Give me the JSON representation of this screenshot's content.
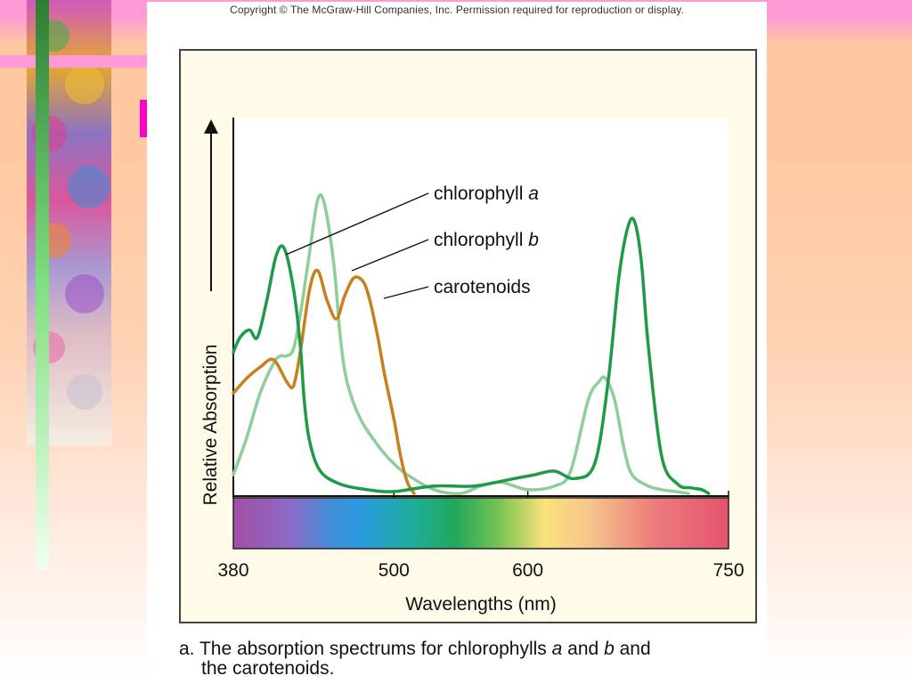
{
  "copyright": "Copyright © The McGraw-Hill Companies, Inc. Permission required for reproduction or display.",
  "caption": {
    "prefix": "a. The absorption spectrums for chlorophylls ",
    "a": "a",
    "mid": " and ",
    "b": "b",
    "suffix": " and",
    "line2": "the carotenoids."
  },
  "colors": {
    "chlorophyll_a": "#1f9a48",
    "chlorophyll_b": "#8dcf9b",
    "carotenoids": "#c8801c",
    "panel_bg": "#fffbe8"
  },
  "chart_data": {
    "type": "line",
    "xlabel": "Wavelengths (nm)",
    "ylabel": "Relative Absorption",
    "xlim": [
      380,
      750
    ],
    "ylim": [
      0,
      1
    ],
    "x_ticks": [
      "380",
      "500",
      "600",
      "750"
    ],
    "spectrum_bar": true,
    "series": [
      {
        "name": "chlorophyll",
        "name_italic": "a",
        "x": [
          380,
          385,
          392,
          398,
          405,
          412,
          418,
          425,
          430,
          433,
          437,
          445,
          460,
          480,
          500,
          530,
          560,
          590,
          605,
          620,
          635,
          650,
          660,
          668,
          675,
          680,
          685,
          690,
          700,
          712,
          722,
          730,
          735
        ],
        "y": [
          0.38,
          0.42,
          0.44,
          0.42,
          0.52,
          0.64,
          0.66,
          0.55,
          0.4,
          0.25,
          0.14,
          0.06,
          0.025,
          0.01,
          0.005,
          0.02,
          0.02,
          0.04,
          0.05,
          0.06,
          0.04,
          0.08,
          0.3,
          0.58,
          0.72,
          0.73,
          0.62,
          0.4,
          0.1,
          0.025,
          0.015,
          0.01,
          0.0
        ]
      },
      {
        "name": "chlorophyll",
        "name_italic": "b",
        "x": [
          380,
          390,
          400,
          410,
          415,
          420,
          425,
          430,
          437,
          443,
          448,
          455,
          460,
          465,
          475,
          490,
          500,
          510,
          530,
          550,
          565,
          580,
          600,
          620,
          632,
          645,
          653,
          658,
          665,
          672,
          678,
          690,
          700,
          710,
          720
        ],
        "y": [
          0.05,
          0.15,
          0.27,
          0.35,
          0.37,
          0.37,
          0.39,
          0.48,
          0.65,
          0.79,
          0.78,
          0.62,
          0.42,
          0.3,
          0.2,
          0.12,
          0.08,
          0.05,
          0.01,
          0.0,
          0.02,
          0.03,
          0.01,
          0.02,
          0.06,
          0.25,
          0.3,
          0.31,
          0.25,
          0.12,
          0.05,
          0.02,
          0.01,
          0.005,
          0.0
        ]
      },
      {
        "name": "carotenoids",
        "x": [
          380,
          390,
          400,
          410,
          420,
          425,
          430,
          437,
          443,
          450,
          457,
          463,
          470,
          477,
          482,
          488,
          493,
          500,
          505,
          510,
          515
        ],
        "y": [
          0.27,
          0.31,
          0.34,
          0.36,
          0.3,
          0.29,
          0.38,
          0.55,
          0.6,
          0.52,
          0.47,
          0.53,
          0.58,
          0.57,
          0.52,
          0.42,
          0.32,
          0.2,
          0.1,
          0.03,
          0.0
        ]
      }
    ]
  }
}
